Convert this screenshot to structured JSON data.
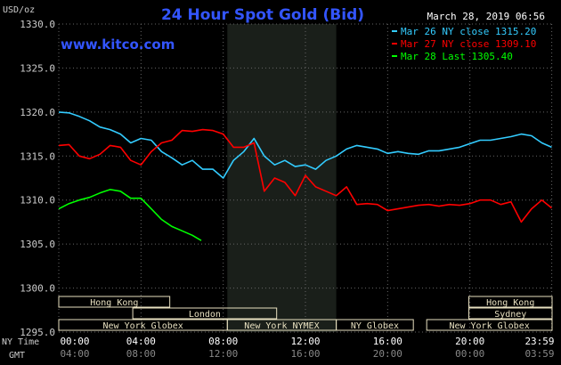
{
  "chart_data": {
    "type": "line",
    "title": "24 Hour Spot Gold (Bid)",
    "source": "www.kitco.com",
    "timestamp": "March 28, 2019 06:56",
    "ylabel": "USD/oz",
    "ylim": [
      1295,
      1330
    ],
    "yticks": [
      "1295.0",
      "1300.0",
      "1305.0",
      "1310.0",
      "1315.0",
      "1320.0",
      "1325.0",
      "1330.0"
    ],
    "x_axis_ny_label": "NY Time",
    "x_axis_gmt_label": "GMT",
    "xticks_ny": [
      "00:00",
      "04:00",
      "08:00",
      "12:00",
      "16:00",
      "20:00",
      "23:59"
    ],
    "xticks_gmt": [
      "04:00",
      "08:00",
      "12:00",
      "16:00",
      "20:00",
      "00:00",
      "03:59"
    ],
    "xticks_hours": [
      0,
      4,
      8,
      12,
      16,
      20,
      23.983
    ],
    "xlim": [
      0,
      24
    ],
    "nymex_session_hours": [
      8.2,
      13.5
    ],
    "grid": true,
    "legend_position": "top-right",
    "colors": {
      "background": "#000000",
      "title": "#3355ff",
      "gridline": "#666666",
      "session_shade": "#1a1f1a",
      "session_box": "#e8e0c0",
      "axis_text": "#cccccc"
    },
    "series": [
      {
        "name": "Mar 26 NY close 1315.20",
        "color": "#33ccff",
        "x": [
          0,
          0.5,
          1.0,
          1.5,
          2.0,
          2.5,
          3.0,
          3.5,
          4.0,
          4.5,
          5.0,
          5.5,
          6.0,
          6.5,
          7.0,
          7.5,
          8.0,
          8.5,
          9.0,
          9.5,
          10.0,
          10.5,
          11.0,
          11.5,
          12.0,
          12.5,
          13.0,
          13.5,
          14.0,
          14.5,
          15.0,
          15.5,
          16.0,
          16.5,
          17.0,
          17.5,
          18.0,
          18.5,
          19.0,
          19.5,
          20.0,
          20.5,
          21.0,
          21.5,
          22.0,
          22.5,
          23.0,
          23.5,
          23.98
        ],
        "y": [
          1320.0,
          1319.9,
          1319.5,
          1319.0,
          1318.3,
          1318.0,
          1317.5,
          1316.5,
          1317.0,
          1316.8,
          1315.5,
          1314.8,
          1314.0,
          1314.5,
          1313.5,
          1313.5,
          1312.5,
          1314.5,
          1315.5,
          1317.0,
          1315.0,
          1314.0,
          1314.5,
          1313.8,
          1314.0,
          1313.5,
          1314.5,
          1315.0,
          1315.8,
          1316.2,
          1316.0,
          1315.8,
          1315.3,
          1315.5,
          1315.3,
          1315.2,
          1315.6,
          1315.6,
          1315.8,
          1316.0,
          1316.4,
          1316.8,
          1316.8,
          1317.0,
          1317.2,
          1317.5,
          1317.3,
          1316.5,
          1316.0
        ]
      },
      {
        "name": "Mar 27 NY close 1309.10",
        "color": "#ff0000",
        "x": [
          0,
          0.5,
          1.0,
          1.5,
          2.0,
          2.5,
          3.0,
          3.5,
          4.0,
          4.5,
          5.0,
          5.5,
          6.0,
          6.5,
          7.0,
          7.5,
          8.0,
          8.5,
          9.0,
          9.5,
          10.0,
          10.5,
          11.0,
          11.5,
          12.0,
          12.5,
          13.0,
          13.5,
          14.0,
          14.5,
          15.0,
          15.5,
          16.0,
          16.5,
          17.0,
          17.5,
          18.0,
          18.5,
          19.0,
          19.5,
          20.0,
          20.5,
          21.0,
          21.5,
          22.0,
          22.5,
          23.0,
          23.5,
          23.98
        ],
        "y": [
          1316.2,
          1316.3,
          1315.0,
          1314.7,
          1315.2,
          1316.2,
          1316.0,
          1314.5,
          1314.0,
          1315.5,
          1316.5,
          1316.8,
          1317.9,
          1317.8,
          1318.0,
          1317.9,
          1317.5,
          1316.0,
          1316.0,
          1316.5,
          1311.0,
          1312.5,
          1312.0,
          1310.5,
          1312.8,
          1311.5,
          1311.0,
          1310.5,
          1311.5,
          1309.5,
          1309.6,
          1309.5,
          1308.8,
          1309.0,
          1309.2,
          1309.4,
          1309.5,
          1309.3,
          1309.5,
          1309.4,
          1309.6,
          1310.0,
          1310.0,
          1309.5,
          1309.8,
          1307.5,
          1309.0,
          1310.0,
          1309.1
        ]
      },
      {
        "name": "Mar 28 Last 1305.40",
        "color": "#00ff00",
        "x": [
          0,
          0.5,
          1.0,
          1.5,
          2.0,
          2.5,
          3.0,
          3.5,
          4.0,
          4.5,
          5.0,
          5.5,
          6.0,
          6.5,
          6.93
        ],
        "y": [
          1309.0,
          1309.6,
          1310.0,
          1310.3,
          1310.8,
          1311.2,
          1311.0,
          1310.2,
          1310.2,
          1309.0,
          1307.8,
          1307.0,
          1306.5,
          1306.0,
          1305.4
        ]
      }
    ],
    "sessions": [
      {
        "label": "Hong Kong",
        "row": 0,
        "start": 0,
        "end": 5.4
      },
      {
        "label": "Hong Kong",
        "row": 0,
        "start": 19.95,
        "end": 24
      },
      {
        "label": "London",
        "row": 1,
        "start": 3.6,
        "end": 10.6
      },
      {
        "label": "Sydney",
        "row": 1,
        "start": 19.95,
        "end": 24
      },
      {
        "label": "New York Globex",
        "row": 2,
        "start": 0,
        "end": 8.2
      },
      {
        "label": "New York NYMEX",
        "row": 2,
        "start": 8.2,
        "end": 13.5
      },
      {
        "label": "NY Globex",
        "row": 2,
        "start": 13.5,
        "end": 17.25
      },
      {
        "label": "New York Globex",
        "row": 2,
        "start": 17.9,
        "end": 24
      }
    ]
  }
}
